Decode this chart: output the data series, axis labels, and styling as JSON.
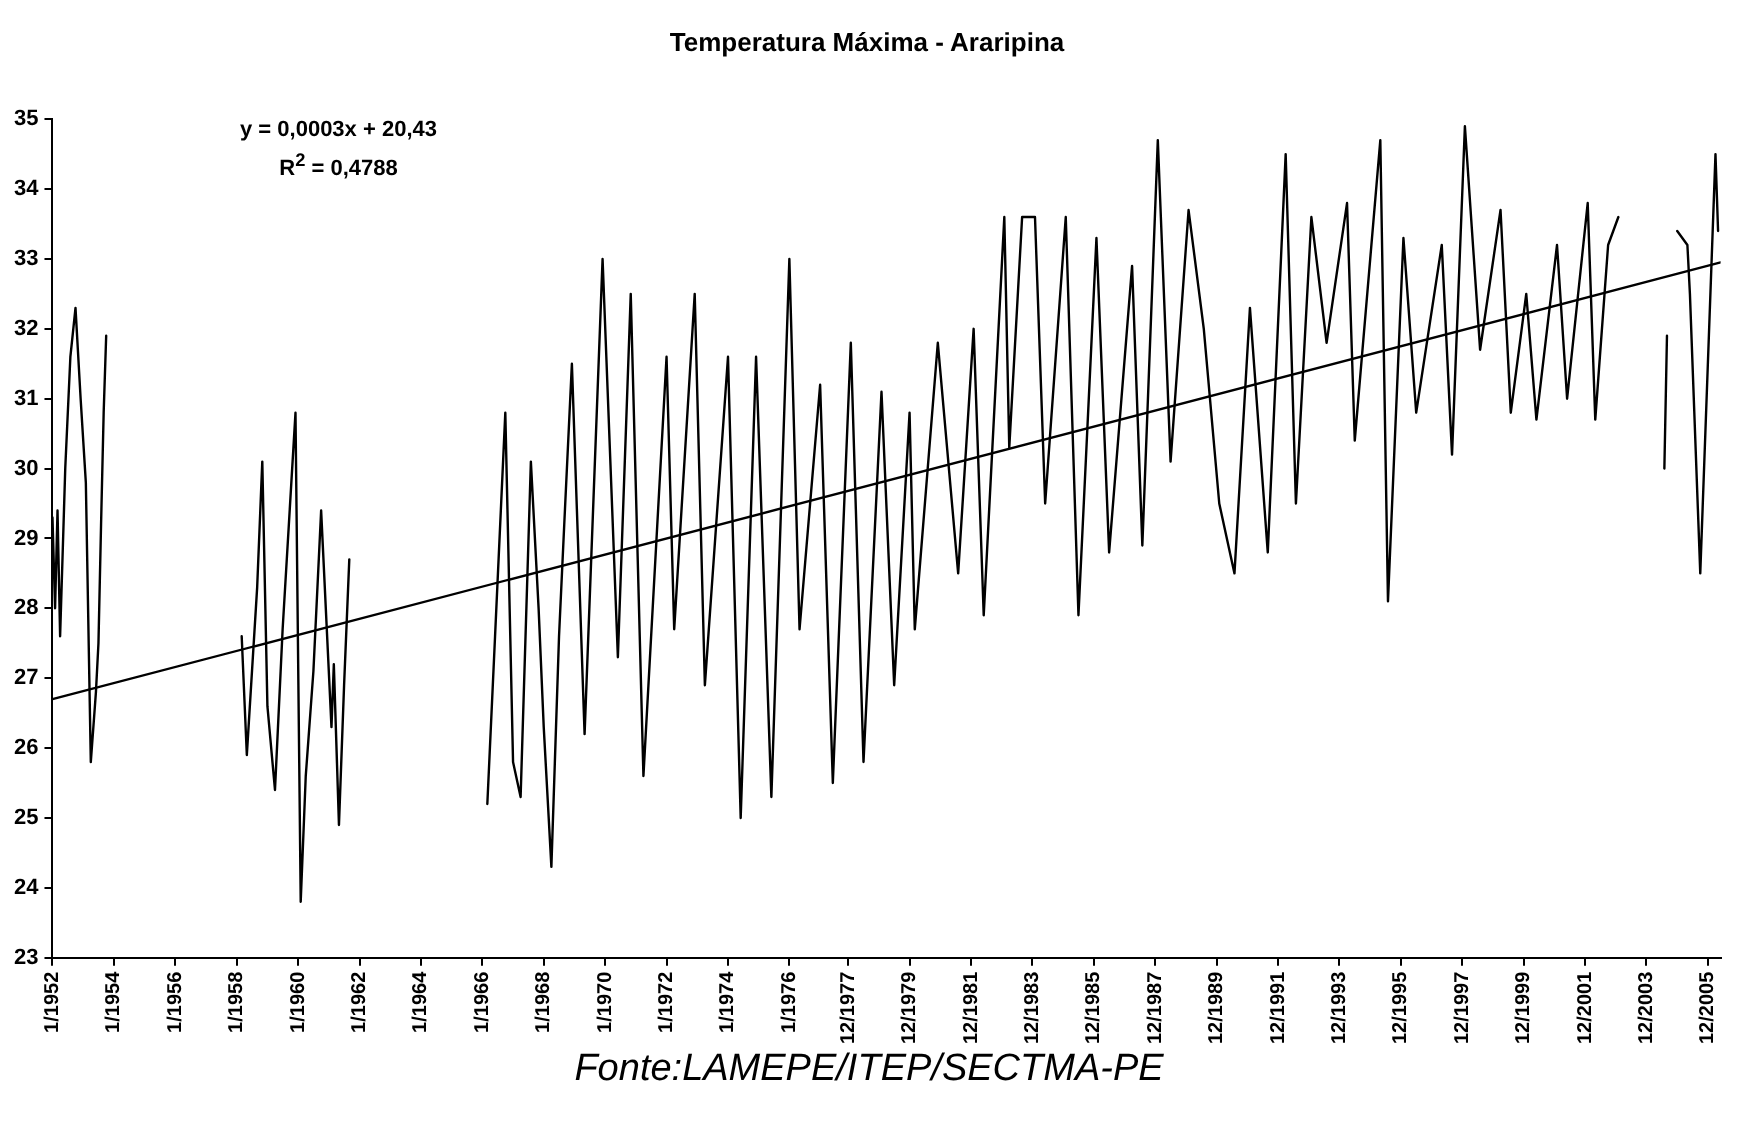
{
  "chart_data": {
    "type": "line",
    "title": "Temperatura Máxima - Araripina",
    "annotations": [
      "y = 0,0003x + 20,43",
      "R$^{2}$ = 0,4788",
      "Fonte:LAMEPE/ITEP/SECTMA-PE"
    ],
    "xlim": [
      "1952-01",
      "2006-05"
    ],
    "xticks": [
      {
        "value": "1952-01",
        "label": "1/1952"
      },
      {
        "value": "1954-01",
        "label": "1/1954"
      },
      {
        "value": "1956-01",
        "label": "1/1956"
      },
      {
        "value": "1958-01",
        "label": "1/1958"
      },
      {
        "value": "1960-01",
        "label": "1/1960"
      },
      {
        "value": "1962-01",
        "label": "1/1962"
      },
      {
        "value": "1964-01",
        "label": "1/1964"
      },
      {
        "value": "1966-01",
        "label": "1/1966"
      },
      {
        "value": "1968-01",
        "label": "1/1968"
      },
      {
        "value": "1970-01",
        "label": "1/1970"
      },
      {
        "value": "1972-01",
        "label": "1/1972"
      },
      {
        "value": "1974-01",
        "label": "1/1974"
      },
      {
        "value": "1976-01",
        "label": "1/1976"
      },
      {
        "value": "1977-12",
        "label": "12/1977"
      },
      {
        "value": "1979-12",
        "label": "12/1979"
      },
      {
        "value": "1981-12",
        "label": "12/1981"
      },
      {
        "value": "1983-12",
        "label": "12/1983"
      },
      {
        "value": "1985-12",
        "label": "12/1985"
      },
      {
        "value": "1987-12",
        "label": "12/1987"
      },
      {
        "value": "1989-12",
        "label": "12/1989"
      },
      {
        "value": "1991-12",
        "label": "12/1991"
      },
      {
        "value": "1993-12",
        "label": "12/1993"
      },
      {
        "value": "1995-12",
        "label": "12/1995"
      },
      {
        "value": "1997-12",
        "label": "12/1997"
      },
      {
        "value": "1999-12",
        "label": "12/1999"
      },
      {
        "value": "2001-12",
        "label": "12/2001"
      },
      {
        "value": "2003-12",
        "label": "12/2003"
      },
      {
        "value": "2005-12",
        "label": "12/2005"
      }
    ],
    "ylim": [
      23,
      35
    ],
    "yticks": [
      23,
      24,
      25,
      26,
      27,
      28,
      29,
      30,
      31,
      32,
      33,
      34,
      35
    ],
    "grid": false,
    "legend": false,
    "marker": "none",
    "line_style": "solid",
    "series": [
      {
        "color": "#000000",
        "x": [
          "1952-01",
          "1952-02",
          "1952-03",
          "1952-04",
          "1952-06",
          "1952-08",
          "1952-10",
          "1952-12",
          "1953-02",
          "1953-04",
          "1953-06",
          "1953-07",
          "1953-08",
          "1953-09",
          "1953-10",
          "1956-01",
          "1958-03",
          "1958-05",
          "1958-09",
          "1958-11",
          "1959-01",
          "1959-04",
          "1959-07",
          "1959-12",
          "1960-02",
          "1960-04",
          "1960-07",
          "1960-10",
          "1961-02",
          "1961-03",
          "1961-05",
          "1961-07",
          "1961-09",
          "1964-01",
          "1966-03",
          "1966-06",
          "1966-10",
          "1967-01",
          "1967-04",
          "1967-08",
          "1967-11",
          "1968-01",
          "1968-04",
          "1968-07",
          "1968-09",
          "1968-12",
          "1969-05",
          "1969-12",
          "1970-06",
          "1970-11",
          "1971-04",
          "1972-01",
          "1972-04",
          "1972-12",
          "1973-04",
          "1974-01",
          "1974-06",
          "1974-12",
          "1975-06",
          "1976-01",
          "1976-05",
          "1977-01",
          "1977-06",
          "1978-01",
          "1978-06",
          "1979-01",
          "1979-06",
          "1979-12",
          "1980-02",
          "1980-11",
          "1981-07",
          "1982-01",
          "1982-05",
          "1983-01",
          "1983-03",
          "1983-08",
          "1984-01",
          "1984-05",
          "1985-01",
          "1985-06",
          "1986-01",
          "1986-06",
          "1987-03",
          "1987-07",
          "1988-01",
          "1988-06",
          "1989-01",
          "1989-07",
          "1990-01",
          "1990-07",
          "1991-01",
          "1991-08",
          "1992-03",
          "1992-07",
          "1993-01",
          "1993-07",
          "1994-03",
          "1994-06",
          "1995-04",
          "1995-07",
          "1996-01",
          "1996-06",
          "1997-04",
          "1997-08",
          "1998-01",
          "1998-07",
          "1999-03",
          "1999-07",
          "2000-01",
          "2000-05",
          "2001-01",
          "2001-05",
          "2002-01",
          "2002-04",
          "2002-09",
          "2003-01",
          "2003-10",
          "2004-07",
          "2004-08",
          "2004-10",
          "2004-12",
          "2005-04",
          "2005-05",
          "2005-09",
          "2006-03",
          "2006-04"
        ],
        "values": [
          29.3,
          28.0,
          29.4,
          27.6,
          30.0,
          31.6,
          32.3,
          31.0,
          29.8,
          25.8,
          26.8,
          27.5,
          29.2,
          30.8,
          31.9,
          null,
          27.6,
          25.9,
          28.3,
          30.1,
          26.6,
          25.4,
          27.7,
          30.8,
          23.8,
          25.6,
          27.1,
          29.4,
          26.3,
          27.2,
          24.9,
          26.9,
          28.7,
          null,
          25.2,
          27.6,
          30.8,
          25.8,
          25.3,
          30.1,
          28.0,
          26.3,
          24.3,
          27.6,
          29.2,
          31.5,
          26.2,
          33.0,
          27.3,
          32.5,
          25.6,
          31.6,
          27.7,
          32.5,
          26.9,
          31.6,
          25.0,
          31.6,
          25.3,
          33.0,
          27.7,
          31.2,
          25.5,
          31.8,
          25.8,
          31.1,
          26.9,
          30.8,
          27.7,
          31.8,
          28.5,
          32.0,
          27.9,
          33.6,
          30.3,
          33.6,
          33.6,
          29.5,
          33.6,
          27.9,
          33.3,
          28.8,
          32.9,
          28.9,
          34.7,
          30.1,
          33.7,
          32.0,
          29.5,
          28.5,
          32.3,
          28.8,
          34.5,
          29.5,
          33.6,
          31.8,
          33.8,
          30.4,
          34.7,
          28.1,
          33.3,
          30.8,
          33.2,
          30.2,
          34.9,
          31.7,
          33.7,
          30.8,
          32.5,
          30.7,
          33.2,
          31.0,
          33.8,
          30.7,
          33.2,
          33.6,
          null,
          30.0,
          31.9,
          null,
          33.4,
          33.2,
          32.5,
          28.5,
          34.5,
          33.4
        ]
      },
      {
        "color": "#000000",
        "x": [
          "1952-01",
          "2006-05"
        ],
        "values": [
          26.7,
          32.95
        ]
      }
    ]
  }
}
